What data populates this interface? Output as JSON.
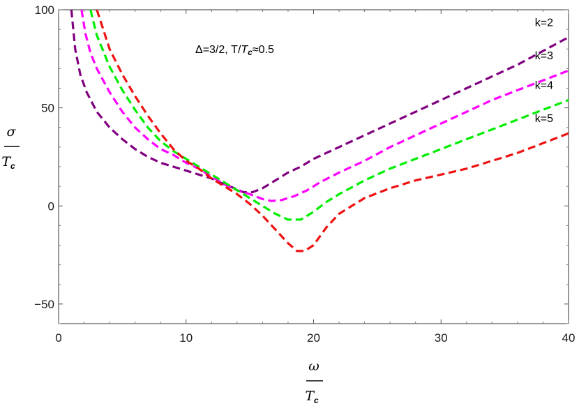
{
  "chart_data": {
    "type": "line",
    "title": "",
    "annotation": {
      "prefix": "Δ=3/2,  T/",
      "T_sym": "T",
      "T_sub": "c",
      "suffix": "≈0.5"
    },
    "xlabel": {
      "symbol": "ω",
      "denominator": "T",
      "denominator_sub": "c"
    },
    "ylabel": {
      "symbol": "σ",
      "denominator": "T",
      "denominator_sub": "c"
    },
    "xlim": [
      0,
      40
    ],
    "ylim": [
      -60,
      100
    ],
    "xticks": [
      0,
      10,
      20,
      30,
      40
    ],
    "yticks": [
      -50,
      0,
      50,
      100
    ],
    "grid": false,
    "line_style": "dashed",
    "series": [
      {
        "name": "k=2",
        "color": "#800080",
        "points": [
          [
            1.0,
            100
          ],
          [
            1.3,
            80
          ],
          [
            1.7,
            67
          ],
          [
            2.2,
            58
          ],
          [
            3,
            48
          ],
          [
            4,
            40
          ],
          [
            5,
            34
          ],
          [
            6,
            29
          ],
          [
            7,
            25
          ],
          [
            8,
            22
          ],
          [
            9,
            20
          ],
          [
            10,
            18
          ],
          [
            11,
            16
          ],
          [
            12,
            14
          ],
          [
            13,
            11
          ],
          [
            13.8,
            9
          ],
          [
            14.5,
            7
          ],
          [
            15.2,
            7
          ],
          [
            16,
            9
          ],
          [
            17,
            13
          ],
          [
            18,
            17
          ],
          [
            19,
            20
          ],
          [
            20,
            24
          ],
          [
            22,
            30
          ],
          [
            24,
            36
          ],
          [
            26,
            42
          ],
          [
            28,
            48
          ],
          [
            30,
            54
          ],
          [
            32,
            60
          ],
          [
            34,
            66
          ],
          [
            36,
            72
          ],
          [
            38,
            79
          ],
          [
            40,
            86
          ]
        ]
      },
      {
        "name": "k=3",
        "color": "#ff00ff",
        "points": [
          [
            1.8,
            100
          ],
          [
            2.1,
            88
          ],
          [
            2.5,
            78
          ],
          [
            3,
            70
          ],
          [
            4,
            58
          ],
          [
            5,
            48
          ],
          [
            6,
            40
          ],
          [
            7,
            34
          ],
          [
            8,
            29
          ],
          [
            9,
            26
          ],
          [
            10,
            22
          ],
          [
            11,
            19
          ],
          [
            12,
            15
          ],
          [
            13,
            11
          ],
          [
            14,
            8
          ],
          [
            15,
            6
          ],
          [
            16,
            3.5
          ],
          [
            16.7,
            2.5
          ],
          [
            17.5,
            3
          ],
          [
            18.5,
            5
          ],
          [
            19.5,
            8
          ],
          [
            20.5,
            12
          ],
          [
            22,
            17
          ],
          [
            24,
            23
          ],
          [
            26,
            30
          ],
          [
            28,
            36
          ],
          [
            30,
            42
          ],
          [
            32,
            48
          ],
          [
            34,
            54
          ],
          [
            36,
            59
          ],
          [
            38,
            64
          ],
          [
            40,
            69
          ]
        ]
      },
      {
        "name": "k=4",
        "color": "#00ee00",
        "points": [
          [
            2.5,
            100
          ],
          [
            3,
            87
          ],
          [
            4,
            71
          ],
          [
            5,
            59
          ],
          [
            6,
            49
          ],
          [
            7,
            40
          ],
          [
            8,
            33
          ],
          [
            9,
            28
          ],
          [
            10,
            24
          ],
          [
            11,
            20
          ],
          [
            12,
            16
          ],
          [
            13,
            12
          ],
          [
            14,
            8
          ],
          [
            15,
            4
          ],
          [
            16,
            0
          ],
          [
            17,
            -4
          ],
          [
            18,
            -7
          ],
          [
            19,
            -7
          ],
          [
            20,
            -3
          ],
          [
            21,
            2
          ],
          [
            22,
            6
          ],
          [
            24,
            13
          ],
          [
            26,
            19
          ],
          [
            28,
            24
          ],
          [
            30,
            29
          ],
          [
            32,
            34
          ],
          [
            34,
            39
          ],
          [
            36,
            44
          ],
          [
            38,
            49
          ],
          [
            40,
            54
          ]
        ]
      },
      {
        "name": "k=5",
        "color": "#ee1111",
        "points": [
          [
            3,
            100
          ],
          [
            3.5,
            90
          ],
          [
            4,
            80
          ],
          [
            5,
            67
          ],
          [
            6,
            56
          ],
          [
            7,
            46
          ],
          [
            8,
            37
          ],
          [
            9,
            29
          ],
          [
            10,
            23
          ],
          [
            11,
            19
          ],
          [
            12,
            14
          ],
          [
            13,
            10
          ],
          [
            14,
            6
          ],
          [
            15,
            1
          ],
          [
            16,
            -5
          ],
          [
            17,
            -12
          ],
          [
            18,
            -19
          ],
          [
            18.7,
            -23
          ],
          [
            19.3,
            -23
          ],
          [
            20,
            -20
          ],
          [
            21,
            -11
          ],
          [
            22,
            -4
          ],
          [
            23,
            0
          ],
          [
            24,
            4
          ],
          [
            26,
            9
          ],
          [
            28,
            13
          ],
          [
            30,
            16
          ],
          [
            32,
            19
          ],
          [
            34,
            23
          ],
          [
            36,
            27
          ],
          [
            38,
            32
          ],
          [
            40,
            37
          ]
        ]
      }
    ]
  }
}
